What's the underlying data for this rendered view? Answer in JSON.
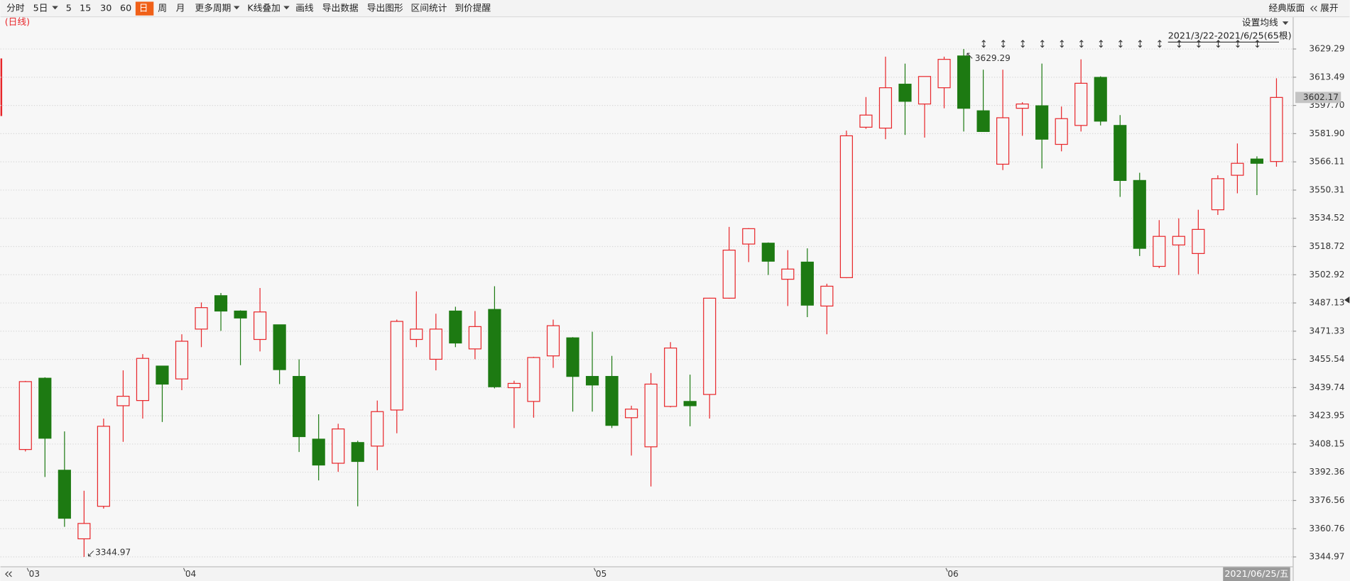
{
  "toolbar": {
    "items": [
      "分时",
      "5日",
      "5",
      "15",
      "30",
      "60",
      "日",
      "周",
      "月",
      "更多周期",
      "K线叠加",
      "画线",
      "导出数据",
      "导出图形",
      "区间统计",
      "到价提醒"
    ],
    "active": "日",
    "layout_button": "经典版面",
    "expand_button": "展开"
  },
  "chart_data": {
    "type": "candlestick",
    "period_label": "(日线)",
    "ma_button": "设置均线",
    "range_label": "2021/3/22-2021/6/25(65根)",
    "cursor_date": "2021/06/25/五",
    "up_color": "#e8262a",
    "down_color": "#1d7a12",
    "grid": true,
    "categories": [
      "03",
      null,
      null,
      null,
      null,
      null,
      null,
      null,
      "04",
      null,
      null,
      null,
      null,
      null,
      null,
      null,
      null,
      null,
      null,
      null,
      null,
      null,
      null,
      null,
      null,
      null,
      null,
      null,
      null,
      "05",
      null,
      null,
      null,
      null,
      null,
      null,
      null,
      null,
      null,
      null,
      null,
      null,
      null,
      null,
      null,
      null,
      null,
      "06",
      null,
      null,
      null,
      null,
      null,
      null,
      null,
      null,
      null,
      null,
      null,
      null,
      null,
      null,
      null,
      null,
      null
    ],
    "open": [
      3405.1,
      3445.0,
      3393.5,
      3355.1,
      3373.3,
      3429.6,
      3432.5,
      3451.8,
      3444.6,
      3472.5,
      3491.2,
      3482.6,
      3466.7,
      3474.9,
      3446.0,
      3410.9,
      3397.4,
      3409.0,
      3407.0,
      3427.2,
      3466.7,
      3455.6,
      3482.6,
      3461.4,
      3483.5,
      3439.7,
      3432.0,
      3457.5,
      3467.6,
      3446.0,
      3446.0,
      3422.9,
      3406.6,
      3429.2,
      3432.0,
      3435.9,
      3489.8,
      3520.1,
      3520.6,
      3500.4,
      3510.0,
      3485.4,
      3501.3,
      3585.5,
      3585.0,
      3609.6,
      3598.5,
      3607.6,
      3625.4,
      3594.7,
      3564.8,
      3596.1,
      3597.5,
      3575.9,
      3586.5,
      3613.4,
      3586.5,
      3555.7,
      3507.6,
      3519.6,
      3514.8,
      3539.3,
      3558.6,
      3567.7,
      3566.3
    ],
    "high": [
      3443.5,
      3445.5,
      3415.2,
      3382.0,
      3422.4,
      3449.4,
      3458.5,
      3452.0,
      3469.6,
      3487.4,
      3492.7,
      3483.0,
      3495.5,
      3475.0,
      3455.6,
      3424.8,
      3419.5,
      3410.0,
      3432.5,
      3477.8,
      3493.6,
      3481.1,
      3485.0,
      3482.6,
      3496.5,
      3443.6,
      3457.0,
      3477.8,
      3468.0,
      3471.0,
      3457.5,
      3429.6,
      3447.9,
      3465.2,
      3447.0,
      3490.0,
      3529.7,
      3529.0,
      3521.0,
      3516.7,
      3517.7,
      3497.9,
      3583.6,
      3602.4,
      3625.0,
      3621.1,
      3614.0,
      3625.0,
      3629.29,
      3617.7,
      3617.7,
      3599.5,
      3621.1,
      3597.1,
      3623.5,
      3614.0,
      3592.3,
      3560.0,
      3533.5,
      3534.5,
      3539.3,
      3558.6,
      3576.4,
      3569.2,
      3612.9
    ],
    "low": [
      3404.0,
      3389.7,
      3361.8,
      3344.97,
      3372.0,
      3409.4,
      3422.4,
      3420.5,
      3438.3,
      3462.4,
      3471.5,
      3452.3,
      3460.0,
      3441.7,
      3403.7,
      3387.8,
      3392.6,
      3373.3,
      3393.5,
      3414.2,
      3462.4,
      3449.4,
      3462.4,
      3455.6,
      3439.3,
      3417.1,
      3422.9,
      3450.8,
      3426.3,
      3426.3,
      3417.1,
      3401.7,
      3384.4,
      3428.7,
      3418.1,
      3422.4,
      3489.5,
      3510.0,
      3502.8,
      3485.4,
      3479.2,
      3469.6,
      3501.0,
      3584.6,
      3578.8,
      3581.2,
      3579.7,
      3596.1,
      3583.1,
      3583.0,
      3561.5,
      3580.7,
      3562.4,
      3572.0,
      3583.1,
      3586.5,
      3546.5,
      3513.4,
      3506.6,
      3502.8,
      3503.3,
      3536.4,
      3548.5,
      3547.5,
      3563.4
    ],
    "close": [
      3443.1,
      3411.4,
      3366.6,
      3363.7,
      3418.1,
      3434.9,
      3456.1,
      3441.7,
      3465.7,
      3484.5,
      3482.6,
      3478.7,
      3482.1,
      3449.8,
      3412.3,
      3396.4,
      3416.6,
      3398.4,
      3426.3,
      3476.8,
      3472.5,
      3472.5,
      3464.7,
      3473.9,
      3440.2,
      3442.1,
      3456.6,
      3474.4,
      3446.0,
      3441.2,
      3418.6,
      3427.7,
      3441.7,
      3461.9,
      3429.6,
      3489.8,
      3516.7,
      3528.7,
      3510.5,
      3506.1,
      3485.9,
      3496.5,
      3580.7,
      3592.3,
      3607.6,
      3600.0,
      3613.9,
      3623.5,
      3596.1,
      3583.1,
      3590.8,
      3598.5,
      3578.8,
      3590.3,
      3610.1,
      3588.9,
      3555.7,
      3517.7,
      3524.4,
      3524.4,
      3528.3,
      3556.7,
      3565.3,
      3565.3,
      3602.17
    ],
    "ylim": [
      3340,
      3638
    ],
    "yticks": [
      3344.97,
      3360.76,
      3376.56,
      3392.36,
      3408.15,
      3423.95,
      3439.74,
      3455.54,
      3471.33,
      3487.13,
      3502.92,
      3518.72,
      3534.52,
      3550.31,
      3566.11,
      {
        "value": 3581.9,
        "label": "3581.90"
      },
      {
        "value": 3597.7,
        "label": "3597.70"
      },
      3613.49,
      3629.29
    ]
  }
}
